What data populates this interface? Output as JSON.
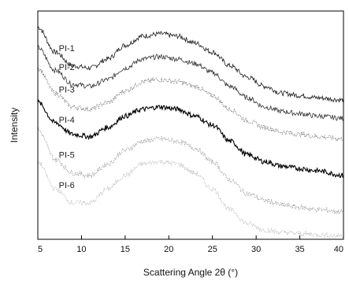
{
  "chart_data": {
    "type": "line",
    "title": "",
    "xlabel": "Scattering Angle 2θ (°)",
    "ylabel": "Intensity",
    "xlim": [
      5,
      40
    ],
    "ylim": [
      0,
      1
    ],
    "x_ticks": [
      5,
      10,
      15,
      20,
      25,
      30,
      35,
      40
    ],
    "y_ticks_shown": false,
    "grid": false,
    "legend": "inline labels at left",
    "x": [
      5,
      7,
      9,
      11,
      13,
      15,
      17,
      19,
      21,
      23,
      25,
      27,
      29,
      31,
      33,
      35,
      37,
      40
    ],
    "series": [
      {
        "name": "PI-1",
        "color": "#1a1a1a",
        "values": [
          0.93,
          0.82,
          0.76,
          0.75,
          0.79,
          0.85,
          0.89,
          0.9,
          0.89,
          0.86,
          0.82,
          0.76,
          0.71,
          0.67,
          0.64,
          0.63,
          0.62,
          0.61
        ]
      },
      {
        "name": "PI-2",
        "color": "#333333",
        "values": [
          0.84,
          0.74,
          0.68,
          0.67,
          0.7,
          0.75,
          0.79,
          0.8,
          0.79,
          0.77,
          0.73,
          0.67,
          0.62,
          0.58,
          0.56,
          0.55,
          0.54,
          0.53
        ]
      },
      {
        "name": "PI-3",
        "color": "#666666",
        "values": [
          0.75,
          0.64,
          0.58,
          0.57,
          0.6,
          0.65,
          0.69,
          0.7,
          0.69,
          0.67,
          0.63,
          0.57,
          0.52,
          0.49,
          0.47,
          0.46,
          0.45,
          0.44
        ]
      },
      {
        "name": "PI-4",
        "color": "#000000",
        "values": [
          0.6,
          0.51,
          0.46,
          0.45,
          0.49,
          0.54,
          0.57,
          0.58,
          0.57,
          0.54,
          0.5,
          0.43,
          0.37,
          0.34,
          0.32,
          0.31,
          0.3,
          0.28
        ]
      },
      {
        "name": "PI-5",
        "color": "#888888",
        "values": [
          0.48,
          0.35,
          0.29,
          0.28,
          0.33,
          0.39,
          0.43,
          0.44,
          0.43,
          0.4,
          0.34,
          0.26,
          0.2,
          0.17,
          0.15,
          0.14,
          0.13,
          0.12
        ]
      },
      {
        "name": "PI-6",
        "color": "#b0b0b0",
        "values": [
          0.34,
          0.22,
          0.16,
          0.16,
          0.22,
          0.28,
          0.33,
          0.34,
          0.33,
          0.29,
          0.22,
          0.13,
          0.07,
          0.04,
          0.03,
          0.025,
          0.02,
          0.015
        ]
      }
    ]
  }
}
